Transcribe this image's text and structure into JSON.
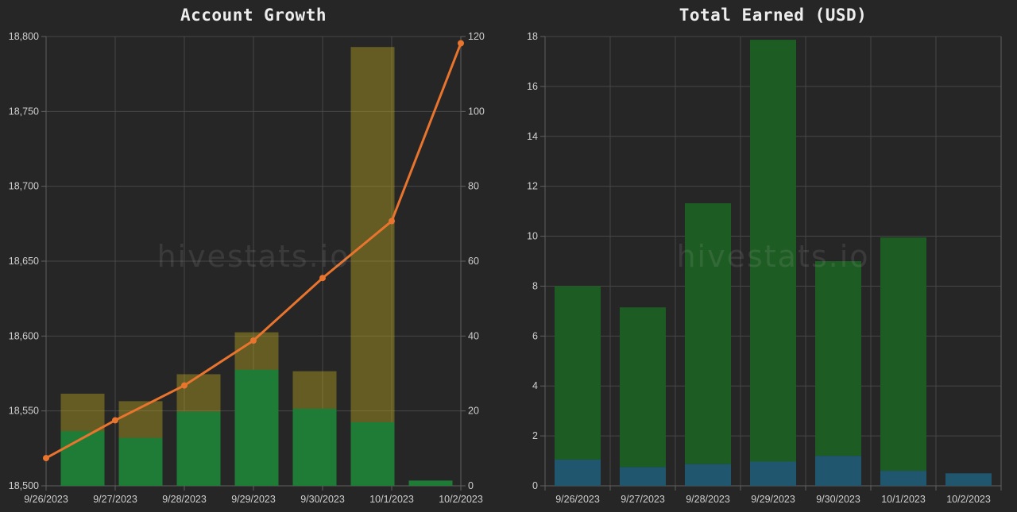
{
  "theme": {
    "background": "#262626",
    "grid_color": "#474747",
    "axis_color": "#606060",
    "tick_text_color": "#cfcfcf",
    "title_color": "#ededed"
  },
  "chart_data": [
    {
      "type": "bar",
      "title": "Account Growth",
      "watermark": "hivestats.io",
      "categories": [
        "9/26/2023",
        "9/27/2023",
        "9/28/2023",
        "9/29/2023",
        "9/30/2023",
        "10/1/2023",
        "10/2/2023"
      ],
      "left_axis": {
        "min": 18500,
        "max": 18800,
        "step": 50,
        "tick_labels": [
          "18,500",
          "18,550",
          "18,600",
          "18,650",
          "18,700",
          "18,750",
          "18,800"
        ]
      },
      "right_axis": {
        "min": 0,
        "max": 120,
        "step": 20,
        "tick_labels": [
          "0",
          "20",
          "40",
          "60",
          "80",
          "100",
          "120"
        ]
      },
      "series": [
        {
          "name": "green-bar",
          "kind": "bar",
          "axis": "left",
          "color": "#1e7c36",
          "values": [
            18536.5,
            18532,
            18549.5,
            18577.5,
            18551.5,
            18542.5,
            18503.5
          ]
        },
        {
          "name": "yellow-bar",
          "kind": "bar",
          "axis": "left",
          "color": "rgba(187,168,30,0.42)",
          "values": [
            18561.5,
            18556.5,
            18574.5,
            18602.5,
            18576.5,
            18793,
            null
          ]
        },
        {
          "name": "orange-line",
          "kind": "line",
          "axis": "right",
          "color": "#e8742e",
          "values": [
            7.4,
            17.5,
            26.8,
            38.8,
            55.5,
            70.7,
            118.2
          ]
        }
      ]
    },
    {
      "type": "bar",
      "title": "Total Earned (USD)",
      "watermark": "hivestats.io",
      "categories": [
        "9/26/2023",
        "9/27/2023",
        "9/28/2023",
        "9/29/2023",
        "9/30/2023",
        "10/1/2023",
        "10/2/2023"
      ],
      "y_axis": {
        "min": 0,
        "max": 18,
        "step": 2,
        "tick_labels": [
          "0",
          "2",
          "4",
          "6",
          "8",
          "10",
          "12",
          "14",
          "16",
          "18"
        ]
      },
      "series": [
        {
          "name": "blue-bar-bottom",
          "kind": "bar-stack",
          "color": "#20566e",
          "values": [
            1.05,
            0.75,
            0.87,
            0.97,
            1.2,
            0.6,
            0.5
          ]
        },
        {
          "name": "green-bar-top",
          "kind": "bar-stack",
          "color": "#1d5c22",
          "values": [
            6.95,
            6.4,
            10.45,
            16.9,
            7.8,
            9.35,
            0
          ]
        }
      ],
      "stacked_totals": [
        8.0,
        7.15,
        11.32,
        17.87,
        9.0,
        9.95,
        0.5
      ]
    }
  ]
}
